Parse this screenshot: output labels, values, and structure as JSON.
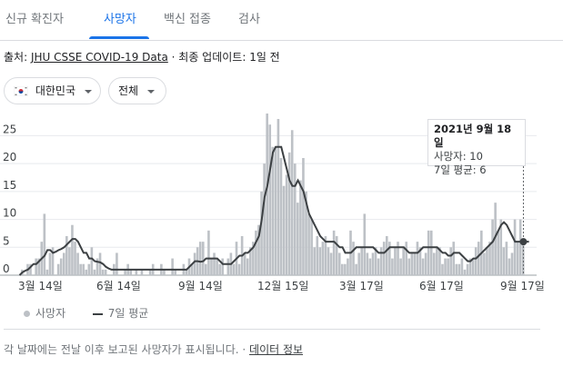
{
  "tabs": [
    {
      "label": "신규 확진자",
      "active": false
    },
    {
      "label": "사망자",
      "active": true
    },
    {
      "label": "백신 접종",
      "active": false
    },
    {
      "label": "검사",
      "active": false
    }
  ],
  "source": {
    "prefix": "출처:",
    "link": "JHU CSSE COVID-19 Data",
    "separator": "·",
    "updated": "최종 업데이트: 1일 전"
  },
  "filters": {
    "country": {
      "flag": "south-korea-flag-icon",
      "label": "대한민국"
    },
    "range": {
      "label": "전체"
    }
  },
  "tooltip": {
    "date": "2021년 9월 18일",
    "deaths_line": "사망자: 10",
    "avg_line": "7일 평균: 6"
  },
  "legend": {
    "deaths": "사망자",
    "avg": "7일 평균"
  },
  "footer": {
    "note": "각 날짜에는 전날 이후 보고된 사망자가 표시됩니다.",
    "separator": "·",
    "link": "데이터 정보"
  },
  "colors": {
    "accent": "#1a73e8",
    "bars": "#bdc1c6",
    "line": "#3c4043"
  },
  "chart_data": {
    "type": "bar",
    "title": "",
    "xlabel": "",
    "ylabel": "",
    "yticks": [
      0,
      5,
      10,
      15,
      20,
      25
    ],
    "ylim": [
      0,
      28
    ],
    "xticks": [
      "3월 14일",
      "6월 14일",
      "9월 14일",
      "12월 15일",
      "3월 17일",
      "6월 17일",
      "9월 17일"
    ],
    "grid": true,
    "legend_position": "bottom-left",
    "series": [
      {
        "name": "사망자",
        "type": "bar",
        "values": [
          0,
          1,
          0,
          2,
          2,
          0,
          3,
          3,
          6,
          11,
          1,
          4,
          5,
          0,
          2,
          3,
          4,
          7,
          5,
          9,
          6,
          4,
          2,
          2,
          1,
          2,
          5,
          1,
          3,
          4,
          1,
          1,
          0,
          0,
          2,
          4,
          0,
          0,
          1,
          2,
          1,
          0,
          1,
          0,
          1,
          0,
          0,
          1,
          2,
          0,
          0,
          2,
          1,
          0,
          0,
          3,
          1,
          0,
          0,
          2,
          1,
          3,
          2,
          4,
          5,
          6,
          6,
          2,
          8,
          3,
          4,
          3,
          2,
          3,
          0,
          3,
          4,
          2,
          6,
          2,
          7,
          4,
          3,
          5,
          6,
          8,
          9,
          15,
          20,
          29,
          27,
          23,
          23,
          28,
          21,
          16,
          18,
          22,
          26,
          20,
          13,
          17,
          21,
          15,
          11,
          10,
          5,
          7,
          5,
          6,
          7,
          5,
          4,
          8,
          7,
          4,
          2,
          2,
          3,
          8,
          6,
          2,
          4,
          5,
          11,
          4,
          3,
          4,
          5,
          3,
          5,
          6,
          7,
          6,
          3,
          5,
          6,
          3,
          5,
          6,
          3,
          4,
          4,
          6,
          5,
          3,
          4,
          8,
          8,
          4,
          5,
          5,
          2,
          3,
          3,
          5,
          6,
          2,
          2,
          3,
          1,
          2,
          3,
          3,
          5,
          6,
          8,
          4,
          5,
          6,
          10,
          13,
          8,
          10,
          5,
          6,
          3,
          4,
          10,
          6,
          10,
          6
        ]
      },
      {
        "name": "7일 평균",
        "type": "line",
        "values": [
          0,
          0.5,
          0.8,
          1,
          1.5,
          2,
          2,
          2.5,
          3,
          3.5,
          4.5,
          4.5,
          4,
          4.2,
          4.5,
          4.7,
          5,
          5.5,
          6,
          6.5,
          6.5,
          6,
          5,
          4,
          4,
          3,
          3,
          2.5,
          2.4,
          2.3,
          2,
          1.5,
          1.2,
          1,
          1,
          1,
          1,
          1,
          1,
          1,
          1,
          1,
          1,
          1,
          1,
          1,
          1,
          1,
          1,
          1,
          1,
          1,
          1,
          1,
          1,
          1,
          1,
          1,
          1,
          1,
          1,
          1.5,
          2,
          2.5,
          2.5,
          2.4,
          2.5,
          3,
          3,
          3,
          3,
          3,
          2.5,
          2,
          2,
          2,
          2,
          2.5,
          3,
          3.5,
          3.5,
          4,
          4,
          4.5,
          5,
          6,
          7,
          10,
          14,
          16,
          19,
          22,
          23,
          23,
          23,
          21,
          19,
          17,
          16,
          16,
          17,
          16,
          15,
          13,
          11,
          10,
          9,
          8,
          7,
          6.5,
          6,
          6,
          6,
          6,
          5.5,
          5,
          5,
          4,
          4,
          4,
          4.5,
          5,
          5,
          5,
          5,
          5,
          5,
          5,
          4.5,
          4,
          4,
          4,
          4.5,
          5,
          5,
          5,
          5,
          5,
          5,
          4.5,
          4,
          4,
          4,
          4,
          4.5,
          5,
          5,
          5,
          5,
          5,
          5,
          4.5,
          4,
          4,
          3.5,
          3.5,
          4,
          4,
          4,
          3.5,
          3,
          2.5,
          2.5,
          3,
          3,
          3.5,
          4,
          4.5,
          5,
          5.5,
          6,
          7,
          8,
          9,
          9.5,
          9,
          8,
          7,
          6,
          6,
          6,
          6,
          6,
          6
        ]
      }
    ]
  }
}
